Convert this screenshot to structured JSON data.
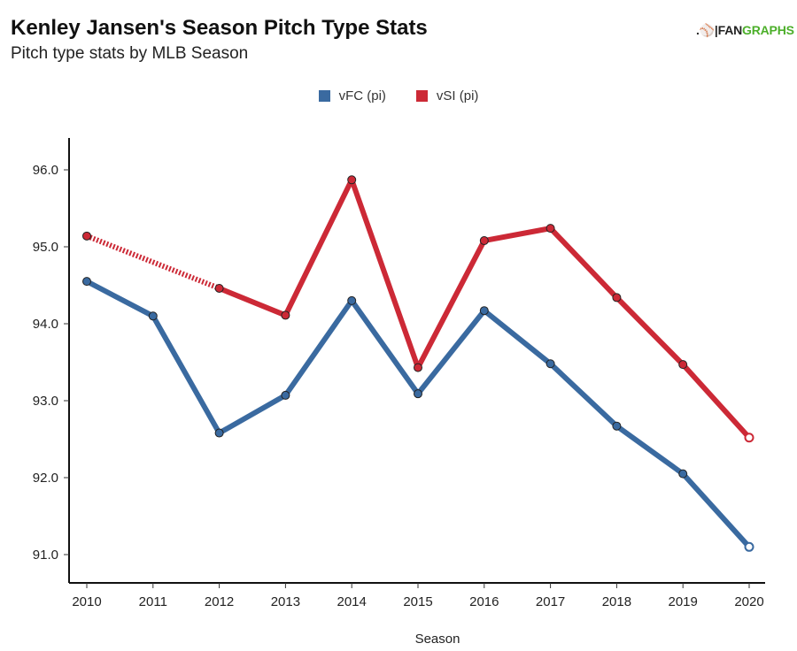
{
  "header": {
    "title": "Kenley Jansen's Season Pitch Type Stats",
    "subtitle": "Pitch type stats by MLB Season",
    "logo_prefix": "FAN",
    "logo_suffix": "GRAPHS",
    "logo_icon": "fangraphs-runner-icon"
  },
  "colors": {
    "vFC": "#3a6aa0",
    "vSI": "#cc2936",
    "logo_green": "#4caf2a"
  },
  "chart_data": {
    "type": "line",
    "title": "Kenley Jansen's Season Pitch Type Stats",
    "subtitle": "Pitch type stats by MLB Season",
    "xlabel": "Season",
    "ylabel": "",
    "x": [
      2010,
      2011,
      2012,
      2013,
      2014,
      2015,
      2016,
      2017,
      2018,
      2019,
      2020
    ],
    "x_tick_labels": [
      "2010",
      "2011",
      "2012",
      "2013",
      "2014",
      "2015",
      "2016",
      "2017",
      "2018",
      "2019",
      "2020"
    ],
    "y_ticks": [
      91.0,
      92.0,
      93.0,
      94.0,
      95.0,
      96.0
    ],
    "y_tick_labels": [
      "91.0",
      "92.0",
      "93.0",
      "94.0",
      "95.0",
      "96.0"
    ],
    "ylim": [
      90.6,
      96.4
    ],
    "xlim": [
      2009.7,
      2020.25
    ],
    "grid": false,
    "legend": "top-center",
    "series": [
      {
        "name": "vFC (pi)",
        "color": "#3a6aa0",
        "values": [
          94.55,
          94.1,
          92.58,
          93.07,
          94.3,
          93.09,
          94.17,
          93.48,
          92.67,
          92.05,
          91.1
        ],
        "last_point_hollow": true
      },
      {
        "name": "vSI (pi)",
        "color": "#cc2936",
        "values": [
          95.14,
          null,
          94.46,
          94.11,
          95.87,
          93.43,
          95.08,
          95.24,
          94.34,
          93.47,
          92.52
        ],
        "gap_dashed_between": [
          2010,
          2012
        ],
        "last_point_hollow": true
      }
    ]
  }
}
